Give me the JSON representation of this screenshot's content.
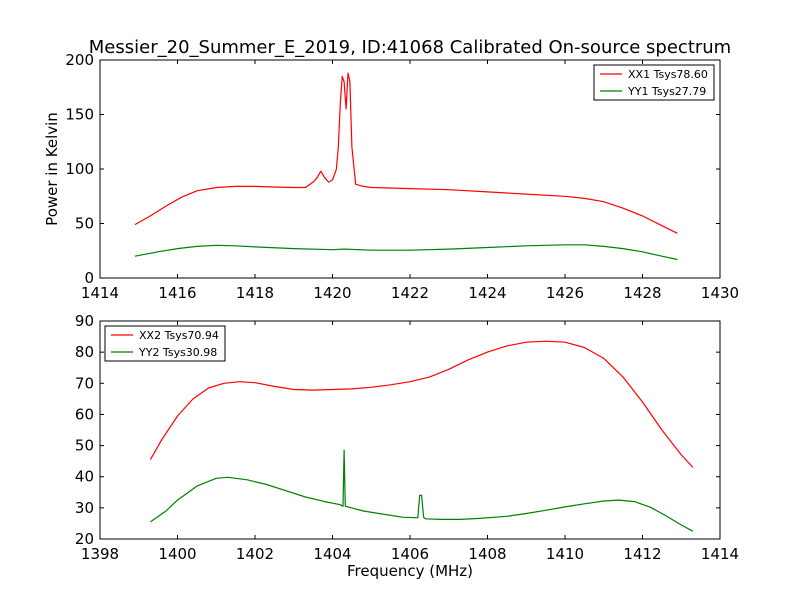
{
  "title": "Messier_20_Summer_E_2019, ID:41068 Calibrated On-source spectrum",
  "chart_data": [
    {
      "type": "line",
      "ylabel": "Power in Kelvin",
      "xlabel": "",
      "xlim": [
        1414,
        1430
      ],
      "ylim": [
        0,
        200
      ],
      "xticks": [
        1414,
        1416,
        1418,
        1420,
        1422,
        1424,
        1426,
        1428,
        1430
      ],
      "yticks": [
        0,
        50,
        100,
        150,
        200
      ],
      "legend_position": "top-right",
      "series": [
        {
          "name": "XX1 Tsys78.60",
          "color": "#ff0000",
          "x": [
            1414.9,
            1415.3,
            1415.7,
            1416.1,
            1416.5,
            1417.0,
            1417.5,
            1418.0,
            1418.5,
            1419.0,
            1419.3,
            1419.5,
            1419.6,
            1419.7,
            1419.8,
            1419.9,
            1420.0,
            1420.1,
            1420.15,
            1420.2,
            1420.25,
            1420.3,
            1420.35,
            1420.4,
            1420.45,
            1420.5,
            1420.6,
            1420.8,
            1421.0,
            1422.0,
            1423.0,
            1424.0,
            1425.0,
            1426.0,
            1426.5,
            1427.0,
            1427.5,
            1428.0,
            1428.5,
            1428.9
          ],
          "y": [
            49,
            57,
            66,
            74,
            80,
            83,
            84,
            84,
            83.5,
            83,
            83,
            88,
            92,
            98,
            92,
            88,
            90,
            100,
            120,
            160,
            185,
            180,
            155,
            188,
            180,
            120,
            86,
            84,
            83,
            82,
            81,
            79,
            77,
            75,
            73,
            70,
            64,
            57,
            48,
            41
          ]
        },
        {
          "name": "YY1 Tsys27.79",
          "color": "#008000",
          "x": [
            1414.9,
            1415.5,
            1416.0,
            1416.5,
            1417.0,
            1417.5,
            1418.0,
            1419.0,
            1420.0,
            1420.3,
            1421.0,
            1422.0,
            1423.0,
            1424.0,
            1425.0,
            1426.0,
            1426.5,
            1427.0,
            1427.5,
            1428.0,
            1428.5,
            1428.9
          ],
          "y": [
            20,
            24,
            27,
            29,
            30,
            29.5,
            28.5,
            27,
            26,
            26.5,
            25.5,
            25.5,
            26.5,
            28,
            29.5,
            30.5,
            30.5,
            29,
            27,
            24,
            20,
            17
          ]
        }
      ]
    },
    {
      "type": "line",
      "xlabel": "Frequency (MHz)",
      "ylabel": "",
      "xlim": [
        1398,
        1414
      ],
      "ylim": [
        20,
        90
      ],
      "xticks": [
        1398,
        1400,
        1402,
        1404,
        1406,
        1408,
        1410,
        1412,
        1414
      ],
      "yticks": [
        20,
        30,
        40,
        50,
        60,
        70,
        80,
        90
      ],
      "legend_position": "top-left",
      "series": [
        {
          "name": "XX2 Tsys70.94",
          "color": "#ff0000",
          "x": [
            1399.3,
            1399.6,
            1400.0,
            1400.4,
            1400.8,
            1401.2,
            1401.6,
            1402.0,
            1402.5,
            1403.0,
            1403.5,
            1404.0,
            1404.5,
            1405.0,
            1405.5,
            1406.0,
            1406.5,
            1407.0,
            1407.5,
            1408.0,
            1408.5,
            1409.0,
            1409.5,
            1410.0,
            1410.5,
            1411.0,
            1411.5,
            1412.0,
            1412.5,
            1413.0,
            1413.3
          ],
          "y": [
            45.5,
            52,
            59.5,
            65,
            68.5,
            70,
            70.5,
            70.2,
            69,
            68,
            67.8,
            68,
            68.2,
            68.7,
            69.5,
            70.5,
            72,
            74.5,
            77.5,
            80,
            82,
            83.2,
            83.5,
            83.2,
            81.5,
            78,
            72,
            64,
            55,
            47,
            43
          ]
        },
        {
          "name": "YY2 Tsys30.98",
          "color": "#008000",
          "x": [
            1399.3,
            1399.7,
            1400.0,
            1400.5,
            1401.0,
            1401.3,
            1401.8,
            1402.3,
            1402.8,
            1403.3,
            1403.8,
            1404.2,
            1404.27,
            1404.3,
            1404.33,
            1404.4,
            1404.8,
            1405.3,
            1405.8,
            1406.2,
            1406.25,
            1406.3,
            1406.35,
            1406.4,
            1406.8,
            1407.3,
            1407.8,
            1408.5,
            1409.0,
            1409.5,
            1410.0,
            1410.5,
            1411.0,
            1411.4,
            1411.8,
            1412.2,
            1412.6,
            1413.0,
            1413.3
          ],
          "y": [
            25.5,
            29,
            32.5,
            37,
            39.5,
            39.8,
            39,
            37.5,
            35.5,
            33.5,
            32,
            31,
            30.5,
            48.5,
            30.5,
            30.3,
            29,
            28,
            27,
            26.8,
            34,
            34,
            27,
            26.5,
            26.3,
            26.3,
            26.6,
            27.3,
            28.2,
            29.2,
            30.3,
            31.3,
            32.2,
            32.5,
            32,
            30.2,
            27.5,
            24.5,
            22.5
          ]
        }
      ]
    }
  ]
}
